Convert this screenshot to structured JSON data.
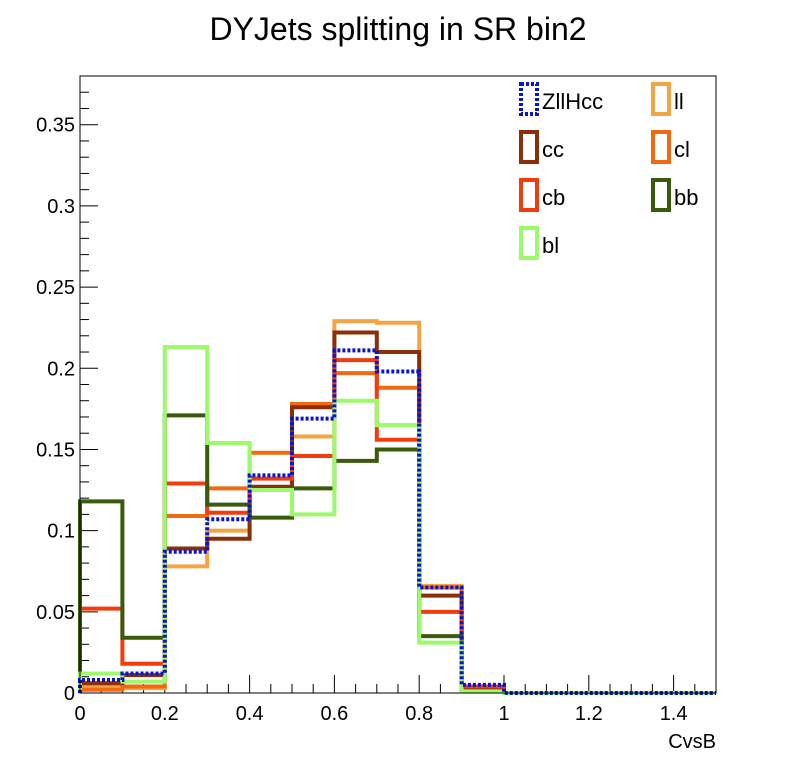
{
  "chart_data": {
    "type": "histogram-step",
    "title": "DYJets splitting in SR bin2",
    "xlabel": "CvsB",
    "ylabel": "",
    "xlim": [
      0,
      1.5
    ],
    "ylim": [
      0,
      0.38
    ],
    "grid": false,
    "legend_position": "top-right",
    "bin_edges": [
      0,
      0.1,
      0.2,
      0.3,
      0.4,
      0.5,
      0.6,
      0.7,
      0.8,
      0.9,
      1.0,
      1.1,
      1.2,
      1.3,
      1.4,
      1.5
    ],
    "x_ticks": [
      "0",
      "0.2",
      "0.4",
      "0.6",
      "0.8",
      "1",
      "1.2",
      "1.4"
    ],
    "y_ticks": [
      "0",
      "0.05",
      "0.1",
      "0.15",
      "0.2",
      "0.25",
      "0.3",
      "0.35"
    ],
    "series": [
      {
        "name": "ll",
        "color": "#f5a444",
        "dashed": false,
        "values": [
          0.004,
          0.003,
          0.078,
          0.1,
          0.125,
          0.158,
          0.229,
          0.228,
          0.066,
          0.002,
          0,
          0,
          0,
          0,
          0
        ]
      },
      {
        "name": "cl",
        "color": "#f26a10",
        "dashed": false,
        "values": [
          0.002,
          0.004,
          0.109,
          0.126,
          0.148,
          0.178,
          0.197,
          0.188,
          0.065,
          0.002,
          0,
          0,
          0,
          0,
          0
        ]
      },
      {
        "name": "cc",
        "color": "#8b2e0a",
        "dashed": false,
        "values": [
          0.006,
          0.011,
          0.089,
          0.095,
          0.127,
          0.176,
          0.222,
          0.21,
          0.06,
          0.003,
          0,
          0,
          0,
          0,
          0
        ]
      },
      {
        "name": "cb",
        "color": "#f23c0d",
        "dashed": false,
        "values": [
          0.052,
          0.018,
          0.129,
          0.111,
          0.132,
          0.146,
          0.205,
          0.156,
          0.05,
          0.004,
          0,
          0,
          0,
          0,
          0
        ]
      },
      {
        "name": "bb",
        "color": "#3a5a0c",
        "dashed": false,
        "values": [
          0.118,
          0.034,
          0.171,
          0.116,
          0.108,
          0.126,
          0.143,
          0.15,
          0.035,
          0.001,
          0,
          0,
          0,
          0,
          0
        ]
      },
      {
        "name": "bl",
        "color": "#9cfa6c",
        "dashed": false,
        "values": [
          0.012,
          0.007,
          0.213,
          0.154,
          0.125,
          0.11,
          0.18,
          0.165,
          0.031,
          0.001,
          0,
          0,
          0,
          0,
          0
        ]
      },
      {
        "name": "ZllHcc",
        "color": "#0a14cc",
        "dashed": true,
        "values": [
          0.008,
          0.012,
          0.087,
          0.107,
          0.134,
          0.169,
          0.211,
          0.198,
          0.065,
          0.005,
          0,
          0,
          0,
          0,
          0
        ]
      }
    ],
    "legend_order": [
      "ZllHcc",
      "ll",
      "cc",
      "cl",
      "cb",
      "bb",
      "bl"
    ]
  }
}
